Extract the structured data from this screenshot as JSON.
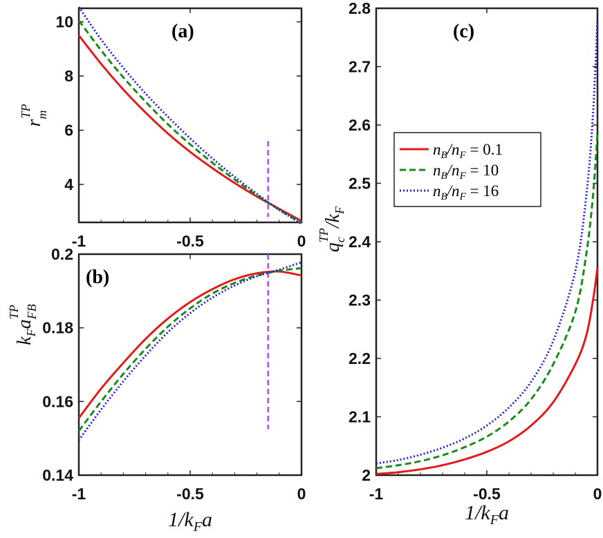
{
  "colors": {
    "series": [
      "#e31a1c",
      "#1a8a1a",
      "#1f1fd6"
    ],
    "vline": "#b44cf0"
  },
  "legend": [
    "n_B/n_F = 0.1",
    "n_B/n_F = 10",
    "n_B/n_F = 16"
  ],
  "labels": {
    "x": "1/k_F a",
    "x_b": "1/k_F a",
    "x_c": "1/k_F a",
    "y_a": "r_m^TP",
    "y_b": "k_F a_FB^TP",
    "y_c": "q_c^TP / k_F"
  },
  "chart_data": [
    {
      "type": "line",
      "panel": "(a)",
      "xlim": [
        -1,
        0
      ],
      "ylim": [
        2.6,
        10.5
      ],
      "xticks": [
        "-1",
        "-0.5",
        "0"
      ],
      "yticks": [
        {
          "value": 4,
          "label": "4"
        },
        {
          "value": 6,
          "label": "6"
        },
        {
          "value": 8,
          "label": "8"
        },
        {
          "value": 10,
          "label": "10"
        }
      ],
      "ylabel": "r_m^TP",
      "vline": {
        "x": -0.15,
        "y_from": 2.8,
        "y_to": 5.6
      },
      "x": [
        -1,
        -0.9,
        -0.8,
        -0.7,
        -0.6,
        -0.5,
        -0.4,
        -0.3,
        -0.2,
        -0.1,
        0
      ],
      "series": [
        {
          "name": "n_B/n_F = 0.1",
          "style": "solid",
          "values": [
            9.5,
            8.45,
            7.5,
            6.65,
            5.88,
            5.2,
            4.6,
            4.05,
            3.55,
            3.1,
            2.65
          ]
        },
        {
          "name": "n_B/n_F = 10",
          "style": "dashed",
          "values": [
            10.05,
            8.95,
            7.95,
            7.05,
            6.22,
            5.48,
            4.8,
            4.18,
            3.6,
            3.07,
            2.58
          ]
        },
        {
          "name": "n_B/n_F = 16",
          "style": "dotted",
          "values": [
            10.55,
            9.35,
            8.3,
            7.35,
            6.5,
            5.7,
            4.96,
            4.28,
            3.65,
            3.06,
            2.55
          ]
        }
      ]
    },
    {
      "type": "line",
      "panel": "(b)",
      "xlim": [
        -1,
        0
      ],
      "ylim": [
        0.14,
        0.2
      ],
      "xticks": [
        "-1",
        "-0.5",
        "0"
      ],
      "yticks": [
        {
          "value": 0.14,
          "label": "0.14"
        },
        {
          "value": 0.16,
          "label": "0.16"
        },
        {
          "value": 0.18,
          "label": "0.18"
        },
        {
          "value": 0.2,
          "label": "0.2"
        }
      ],
      "xlabel": "1/k_F a",
      "ylabel": "k_F a_FB^TP",
      "vline": {
        "x": -0.15,
        "y_from": 0.1525,
        "y_to": 0.2
      },
      "x": [
        -1,
        -0.9,
        -0.8,
        -0.7,
        -0.6,
        -0.5,
        -0.4,
        -0.3,
        -0.2,
        -0.1,
        0
      ],
      "series": [
        {
          "name": "n_B/n_F = 0.1",
          "style": "solid",
          "values": [
            0.1555,
            0.1635,
            0.1705,
            0.177,
            0.1825,
            0.187,
            0.1905,
            0.1932,
            0.1948,
            0.1953,
            0.1942
          ]
        },
        {
          "name": "n_B/n_F = 10",
          "style": "dashed",
          "values": [
            0.152,
            0.16,
            0.1675,
            0.1743,
            0.1803,
            0.1853,
            0.1893,
            0.1922,
            0.1942,
            0.1955,
            0.1962
          ]
        },
        {
          "name": "n_B/n_F = 16",
          "style": "dotted",
          "values": [
            0.1495,
            0.1578,
            0.1655,
            0.1725,
            0.1788,
            0.184,
            0.1882,
            0.1915,
            0.194,
            0.1958,
            0.1978
          ]
        }
      ]
    },
    {
      "type": "line",
      "panel": "(c)",
      "xlim": [
        -1,
        0
      ],
      "ylim": [
        2.0,
        2.8
      ],
      "xticks": [
        "-1",
        "-0.5",
        "0"
      ],
      "yticks": [
        {
          "value": 2.0,
          "label": "2"
        },
        {
          "value": 2.1,
          "label": "2.1"
        },
        {
          "value": 2.2,
          "label": "2.2"
        },
        {
          "value": 2.3,
          "label": "2.3"
        },
        {
          "value": 2.4,
          "label": "2.4"
        },
        {
          "value": 2.5,
          "label": "2.5"
        },
        {
          "value": 2.6,
          "label": "2.6"
        },
        {
          "value": 2.7,
          "label": "2.7"
        },
        {
          "value": 2.8,
          "label": "2.8"
        }
      ],
      "xlabel": "1/k_F a",
      "ylabel": "q_c^TP / k_F",
      "x": [
        -1,
        -0.9,
        -0.8,
        -0.7,
        -0.6,
        -0.5,
        -0.4,
        -0.3,
        -0.2,
        -0.1,
        -0.05,
        -0.02,
        0
      ],
      "series": [
        {
          "name": "n_B/n_F = 0.1",
          "style": "solid",
          "values": [
            2.002,
            2.005,
            2.01,
            2.017,
            2.027,
            2.04,
            2.058,
            2.085,
            2.125,
            2.19,
            2.24,
            2.3,
            2.355
          ]
        },
        {
          "name": "n_B/n_F = 10",
          "style": "dashed",
          "values": [
            2.012,
            2.017,
            2.024,
            2.034,
            2.048,
            2.066,
            2.092,
            2.13,
            2.19,
            2.28,
            2.38,
            2.48,
            2.585
          ]
        },
        {
          "name": "n_B/n_F = 16",
          "style": "dotted",
          "values": [
            2.02,
            2.026,
            2.035,
            2.047,
            2.063,
            2.085,
            2.116,
            2.16,
            2.23,
            2.35,
            2.48,
            2.62,
            2.78
          ]
        }
      ]
    }
  ]
}
